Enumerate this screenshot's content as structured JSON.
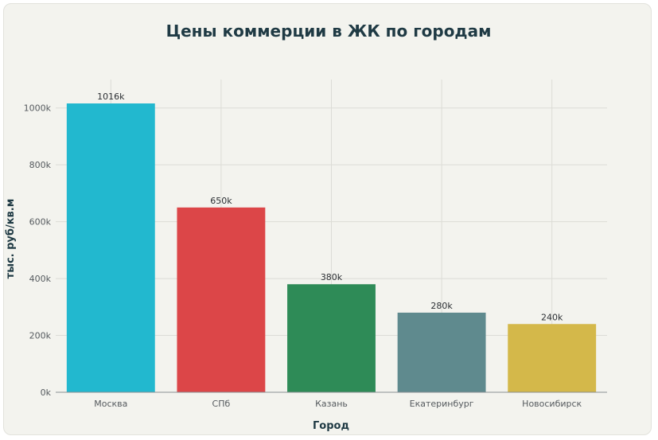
{
  "chart_data": {
    "type": "bar",
    "title": "Цены коммерции в ЖК по городам",
    "xlabel": "Город",
    "ylabel": "тыс. руб/кв.м",
    "categories": [
      "Москва",
      "СПб",
      "Казань",
      "Екатеринбург",
      "Новосибирск"
    ],
    "values": [
      1016,
      650,
      380,
      280,
      240
    ],
    "data_labels": [
      "1016k",
      "650k",
      "380k",
      "280k",
      "240k"
    ],
    "colors": [
      "#22b8cf",
      "#dc4648",
      "#2e8b57",
      "#5f8a8e",
      "#d4b84a"
    ],
    "ylim": [
      0,
      1100
    ],
    "yticks": [
      0,
      200,
      400,
      600,
      800,
      1000
    ],
    "ytick_labels": [
      "0k",
      "200k",
      "400k",
      "600k",
      "800k",
      "1000k"
    ],
    "grid": true,
    "legend": "none"
  }
}
